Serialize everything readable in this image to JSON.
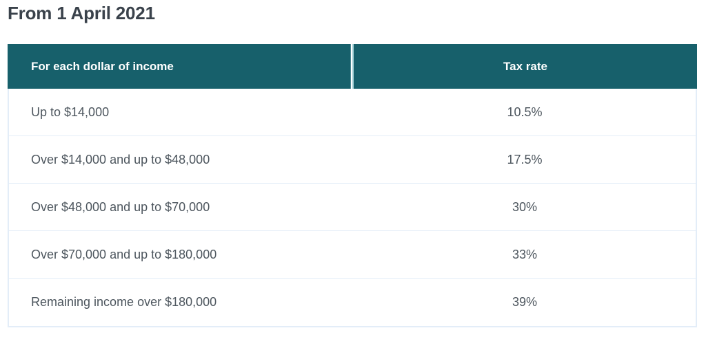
{
  "page": {
    "title": "From 1 April 2021"
  },
  "table": {
    "columns": [
      {
        "label": "For each dollar of income"
      },
      {
        "label": "Tax rate"
      }
    ],
    "rows": [
      {
        "income": "Up to $14,000",
        "rate": "10.5%"
      },
      {
        "income": "Over $14,000 and up to $48,000",
        "rate": "17.5%"
      },
      {
        "income": "Over $48,000 and up to $70,000",
        "rate": "30%"
      },
      {
        "income": "Over $70,000 and up to $180,000",
        "rate": "33%"
      },
      {
        "income": "Remaining income over $180,000",
        "rate": "39%"
      }
    ],
    "colors": {
      "header_background": "#17606b",
      "header_text": "#ffffff",
      "row_background": "#ffffff",
      "row_border": "#e3edf8",
      "row_text": "#4d565e",
      "title_text": "#3a424b",
      "header_divider_light": "#a9d4da"
    }
  }
}
